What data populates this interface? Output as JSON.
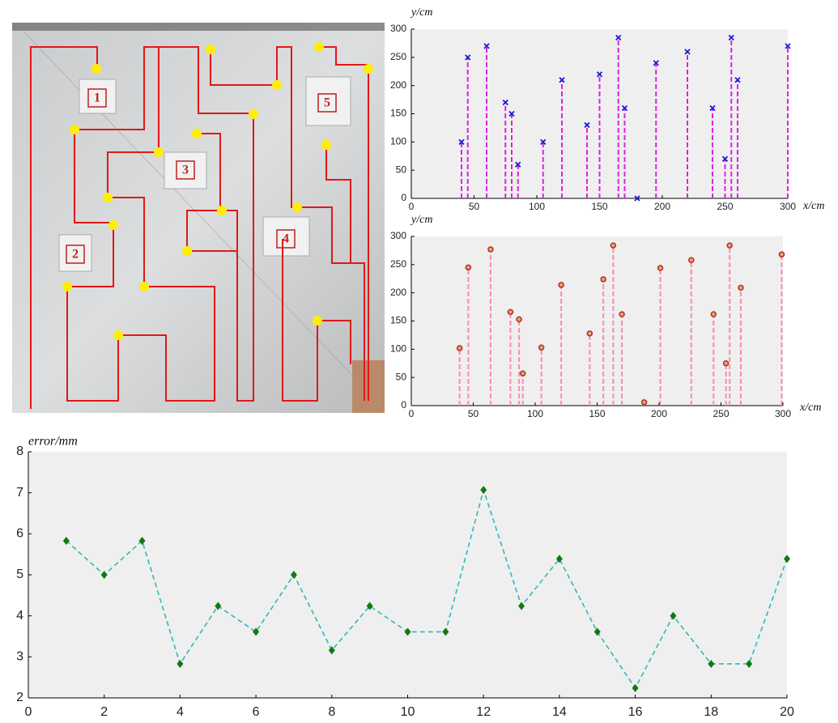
{
  "photo": {
    "labels": [
      "1",
      "2",
      "3",
      "4",
      "5"
    ]
  },
  "chart_data": [
    {
      "type": "stem",
      "y_label": "y/cm",
      "x_label": "x/cm",
      "x": [
        40,
        45,
        60,
        75,
        80,
        85,
        105,
        120,
        140,
        150,
        165,
        170,
        180,
        195,
        220,
        240,
        250,
        255,
        260,
        300
      ],
      "values": [
        100,
        250,
        270,
        170,
        150,
        60,
        100,
        210,
        130,
        220,
        285,
        160,
        0,
        240,
        260,
        160,
        70,
        285,
        210,
        270
      ],
      "xlim": [
        0,
        300
      ],
      "ylim": [
        0,
        300
      ],
      "xticks": [
        0,
        50,
        100,
        150,
        200,
        250,
        300
      ],
      "yticks": [
        0,
        50,
        100,
        150,
        200,
        250,
        300
      ],
      "stem_color": "#e020e0",
      "marker_color": "#1a1ad8",
      "marker": "x"
    },
    {
      "type": "stem",
      "y_label": "y/cm",
      "x_label": "x/cm",
      "x": [
        39,
        46,
        64,
        80,
        87,
        90,
        105,
        121,
        144,
        155,
        163,
        170,
        188,
        201,
        226,
        244,
        254,
        257,
        266,
        299
      ],
      "values": [
        102,
        245,
        277,
        166,
        153,
        57,
        103,
        214,
        128,
        224,
        284,
        162,
        6,
        244,
        258,
        162,
        75,
        284,
        209,
        268
      ],
      "xlim": [
        0,
        300
      ],
      "ylim": [
        0,
        300
      ],
      "xticks": [
        0,
        50,
        100,
        150,
        200,
        250,
        300
      ],
      "yticks": [
        0,
        50,
        100,
        150,
        200,
        250,
        300
      ],
      "stem_color": "#ff88b0",
      "marker_color": "#b0301c",
      "marker": "circle"
    },
    {
      "type": "line",
      "y_label": "error/mm",
      "x": [
        1,
        2,
        3,
        4,
        5,
        6,
        7,
        8,
        9,
        10,
        11,
        12,
        13,
        14,
        15,
        16,
        17,
        18,
        19,
        20
      ],
      "values": [
        5.83,
        5,
        5.83,
        2.83,
        4.24,
        3.61,
        5,
        3.16,
        4.24,
        3.61,
        3.61,
        7.07,
        4.24,
        5.39,
        3.61,
        2.24,
        4,
        2.83,
        2.83,
        5.39
      ],
      "xlim": [
        0,
        20
      ],
      "ylim": [
        2,
        8
      ],
      "xticks": [
        0,
        2,
        4,
        6,
        8,
        10,
        12,
        14,
        16,
        18,
        20
      ],
      "yticks": [
        2,
        3,
        4,
        5,
        6,
        7,
        8
      ],
      "color": "#30b8b8",
      "marker_color": "#107a10",
      "marker": "diamond"
    }
  ]
}
